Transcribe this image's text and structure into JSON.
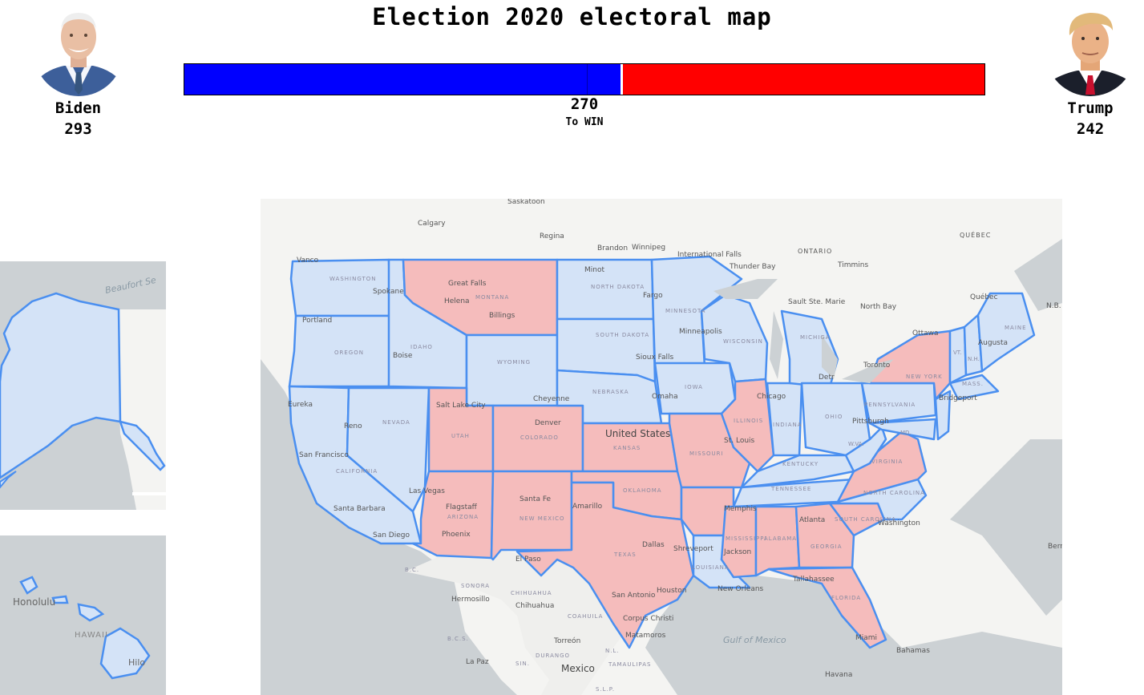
{
  "title": "Election 2020 electoral map",
  "candidates": {
    "left": {
      "name": "Biden",
      "votes": "293",
      "color": "#0000ff"
    },
    "right": {
      "name": "Trump",
      "votes": "242",
      "color": "#ff0000"
    }
  },
  "bar": {
    "blue_share": 0.545,
    "red_share": 0.45
  },
  "to_win": {
    "number": "270",
    "label": "To WIN"
  },
  "colors": {
    "dem_fill": "#d4e3f7",
    "rep_fill": "#f5bcbc",
    "border": "#4a8ff0"
  },
  "map_labels": {
    "saskatoon": "Saskatoon",
    "calgary": "Calgary",
    "regina": "Regina",
    "brandon": "Brandon",
    "winnipeg": "Winnipeg",
    "intl_falls": "International Falls",
    "thunder_bay": "Thunder Bay",
    "ontario": "ONTARIO",
    "timmins": "Timmins",
    "quebec_prov": "QUÉBEC",
    "quebec_city": "Québec",
    "nb": "N.B.",
    "north_bay": "North Bay",
    "sault": "Sault Ste. Marie",
    "ottawa": "Ottawa",
    "toronto": "Toronto",
    "vancouver": "Vanco",
    "washington": "WASHINGTON",
    "spokane": "Spokane",
    "portland": "Portland",
    "oregon": "OREGON",
    "boise": "Boise",
    "idaho": "IDAHO",
    "great_falls": "Great Falls",
    "montana": "MONTANA",
    "helena": "Helena",
    "billings": "Billings",
    "wyoming": "WYOMING",
    "cheyenne": "Cheyenne",
    "minot": "Minot",
    "north_dakota": "NORTH DAKOTA",
    "fargo": "Fargo",
    "south_dakota": "SOUTH DAKOTA",
    "sioux_falls": "Sioux Falls",
    "nebraska": "NEBRASKA",
    "omaha": "Omaha",
    "minnesota": "MINNESOTA",
    "minneapolis": "Minneapolis",
    "wisconsin": "WISCONSIN",
    "michigan": "MICHIGA",
    "iowa": "IOWA",
    "chicago": "Chicago",
    "detroit": "Detr",
    "illinois": "ILLINOIS",
    "indiana": "INDIANA",
    "ohio": "OHIO",
    "pennsylvania": "PENNSYLVANIA",
    "pittsburgh": "Pittsburgh",
    "new_york": "NEW YORK",
    "bridgeport": "Bridgeport",
    "mass": "MASS.",
    "maine": "MAINE",
    "augusta": "Augusta",
    "vt": "VT.",
    "nh": "N.H.",
    "md": "MD.",
    "wva": "W.VA.",
    "virginia": "VIRGINIA",
    "kentucky": "KENTUCKY",
    "tennessee": "TENNESSEE",
    "north_carolina": "NORTH CAROLINA",
    "washington_dc": "Washington",
    "south_carolina": "SOUTH CAROLINA",
    "georgia": "GEORGIA",
    "atlanta": "Atlanta",
    "alabama": "ALABAMA",
    "mississippi": "MISSISSIPPI",
    "memphis": "Memphis",
    "jackson": "Jackson",
    "tallahassee": "Tallahassee",
    "florida": "FLORIDA",
    "miami": "Miami",
    "louisiana": "LOUISIANA",
    "new_orleans": "New Orleans",
    "shreveport": "Shreveport",
    "texas": "TEXAS",
    "dallas": "Dallas",
    "houston": "Houston",
    "san_antonio": "San Antonio",
    "corpus_christi": "Corpus Christi",
    "matamoros": "Matamoros",
    "el_paso": "El Paso",
    "oklahoma": "OKLAHOMA",
    "kansas": "KANSAS",
    "missouri": "MISSOURI",
    "st_louis": "St. Louis",
    "united_states": "United States",
    "denver": "Denver",
    "colorado": "COLORADO",
    "salt_lake": "Salt Lake City",
    "utah": "UTAH",
    "nevada": "NEVADA",
    "reno": "Reno",
    "las_vegas": "Las Vegas",
    "eureka": "Eureka",
    "san_francisco": "San Francisco",
    "california": "CALIFORNIA",
    "santa_barbara": "Santa Barbara",
    "san_diego": "San Diego",
    "flagstaff": "Flagstaff",
    "arizona": "ARIZONA",
    "phoenix": "Phoenix",
    "santa_fe": "Santa Fe",
    "new_mexico": "NEW MEXICO",
    "amarillo": "Amarillo",
    "bc": "B.C.",
    "sonora": "SONORA",
    "hermosillo": "Hermosillo",
    "chihuahua_state": "CHIHUAHUA",
    "chihuahua_city": "Chihuahua",
    "coahuila": "COAHUILA",
    "bcs": "B.C.S.",
    "torreon": "Torreón",
    "durango": "DURANGO",
    "nl": "N.L.",
    "tamaulipas": "TAMAULIPAS",
    "la_paz": "La Paz",
    "sin": "SIN.",
    "mexico": "Mexico",
    "slp": "S.L.P.",
    "gulf": "Gulf of Mexico",
    "bahamas": "Bahamas",
    "havana": "Havana",
    "bermuda": "Berr",
    "beaufort": "Beaufort Se",
    "honolulu": "Honolulu",
    "hawaii": "HAWAII",
    "hilo": "Hilo"
  }
}
